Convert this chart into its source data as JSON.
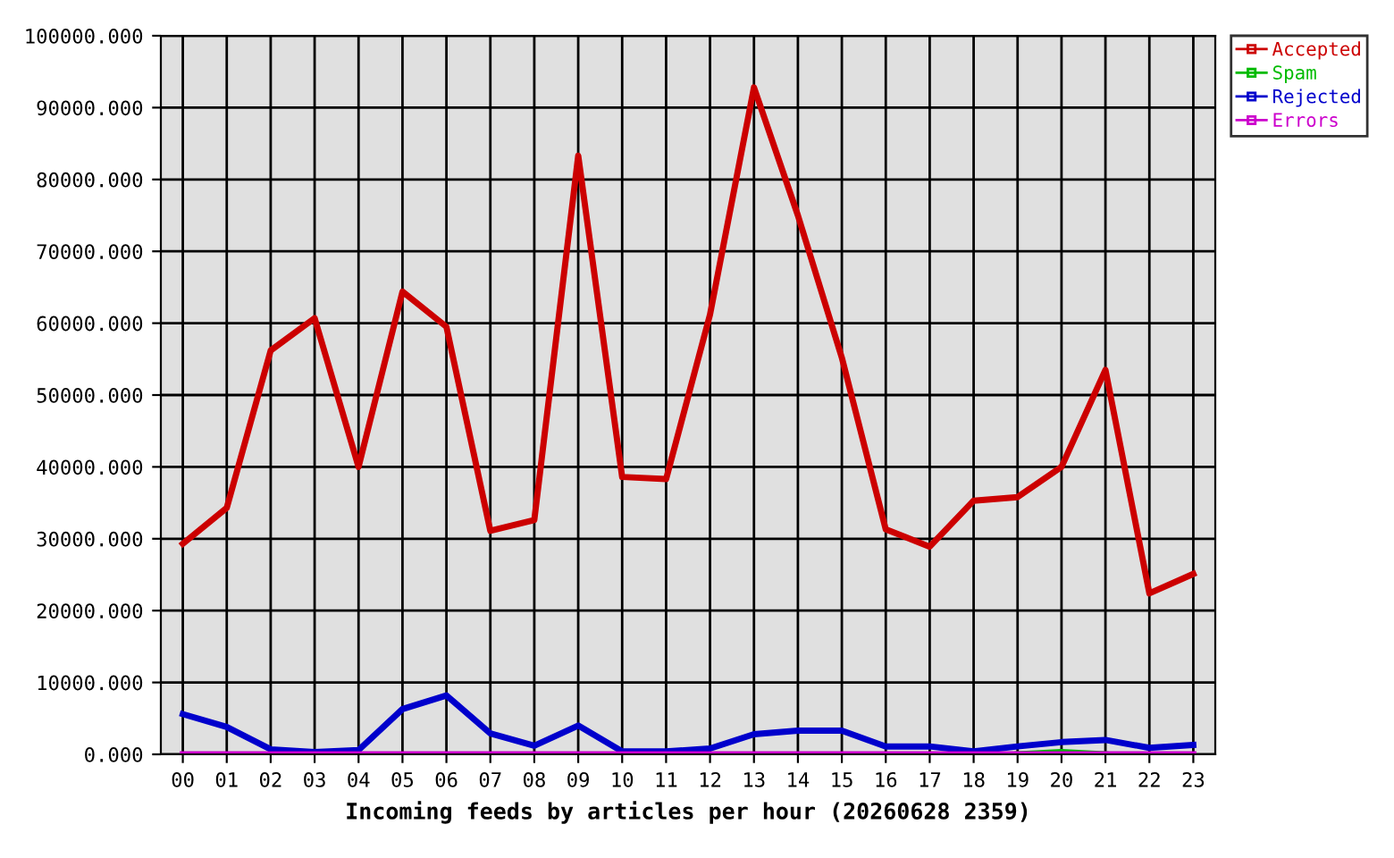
{
  "chart_data": {
    "type": "line",
    "xlabel": "Incoming feeds by articles per hour (20260628 2359)",
    "categories": [
      "00",
      "01",
      "02",
      "03",
      "04",
      "05",
      "06",
      "07",
      "08",
      "09",
      "10",
      "11",
      "12",
      "13",
      "14",
      "15",
      "16",
      "17",
      "18",
      "19",
      "20",
      "21",
      "22",
      "23"
    ],
    "series": [
      {
        "name": "Accepted",
        "color": "#cc0000",
        "values": [
          29300,
          34300,
          56200,
          60700,
          40000,
          64400,
          59500,
          31100,
          32600,
          83300,
          38600,
          38300,
          61200,
          92800,
          75000,
          55200,
          31300,
          28900,
          35300,
          35800,
          40000,
          53500,
          22400,
          25100
        ]
      },
      {
        "name": "Spam",
        "color": "#00bb00",
        "values": [
          null,
          null,
          null,
          null,
          null,
          null,
          null,
          null,
          null,
          null,
          null,
          null,
          null,
          null,
          null,
          null,
          null,
          null,
          null,
          0,
          300,
          0,
          null,
          null
        ]
      },
      {
        "name": "Rejected",
        "color": "#0000cc",
        "values": [
          5600,
          3800,
          700,
          300,
          600,
          6300,
          8200,
          2900,
          1200,
          4000,
          400,
          400,
          800,
          2800,
          3300,
          3300,
          1100,
          1100,
          400,
          1100,
          1700,
          2000,
          900,
          1300
        ]
      },
      {
        "name": "Errors",
        "color": "#cc00cc",
        "values": [
          0,
          0,
          0,
          0,
          0,
          0,
          0,
          0,
          0,
          0,
          0,
          0,
          0,
          0,
          0,
          0,
          0,
          0,
          0,
          0,
          0,
          0,
          0,
          0
        ]
      }
    ],
    "ylim": [
      0,
      100000
    ],
    "yticks": [
      {
        "value": 0,
        "label": "0.000"
      },
      {
        "value": 10000,
        "label": "10000.000"
      },
      {
        "value": 20000,
        "label": "20000.000"
      },
      {
        "value": 30000,
        "label": "30000.000"
      },
      {
        "value": 40000,
        "label": "40000.000"
      },
      {
        "value": 50000,
        "label": "50000.000"
      },
      {
        "value": 60000,
        "label": "60000.000"
      },
      {
        "value": 70000,
        "label": "70000.000"
      },
      {
        "value": 80000,
        "label": "80000.000"
      },
      {
        "value": 90000,
        "label": "90000.000"
      },
      {
        "value": 100000,
        "label": "100000.000"
      }
    ],
    "grid": true,
    "legend": "top right"
  }
}
